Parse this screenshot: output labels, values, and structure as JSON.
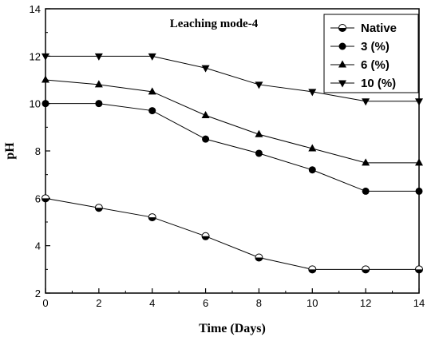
{
  "chart_data": {
    "type": "line",
    "title": "Leaching mode-4",
    "xlabel": "Time (Days)",
    "ylabel": "pH",
    "xlim": [
      0,
      14
    ],
    "ylim": [
      2,
      14
    ],
    "xticks": [
      0,
      2,
      4,
      6,
      8,
      10,
      12,
      14
    ],
    "yticks": [
      2,
      4,
      6,
      8,
      10,
      12,
      14
    ],
    "x": [
      0,
      2,
      4,
      6,
      8,
      10,
      12,
      14
    ],
    "legend_position": "top-right",
    "grid": false,
    "series": [
      {
        "name": "Native",
        "marker": "half-filled-circle",
        "values": [
          6.0,
          5.6,
          5.2,
          4.4,
          3.5,
          3.0,
          3.0,
          3.0
        ]
      },
      {
        "name": "3 (%)",
        "marker": "circle",
        "values": [
          10.0,
          10.0,
          9.7,
          8.5,
          7.9,
          7.2,
          6.3,
          6.3
        ]
      },
      {
        "name": "6 (%)",
        "marker": "triangle-up",
        "values": [
          11.0,
          10.8,
          10.5,
          9.5,
          8.7,
          8.1,
          7.5,
          7.5
        ]
      },
      {
        "name": "10 (%)",
        "marker": "triangle-down",
        "values": [
          12.0,
          12.0,
          12.0,
          11.5,
          10.8,
          10.5,
          10.1,
          10.1
        ]
      }
    ]
  }
}
